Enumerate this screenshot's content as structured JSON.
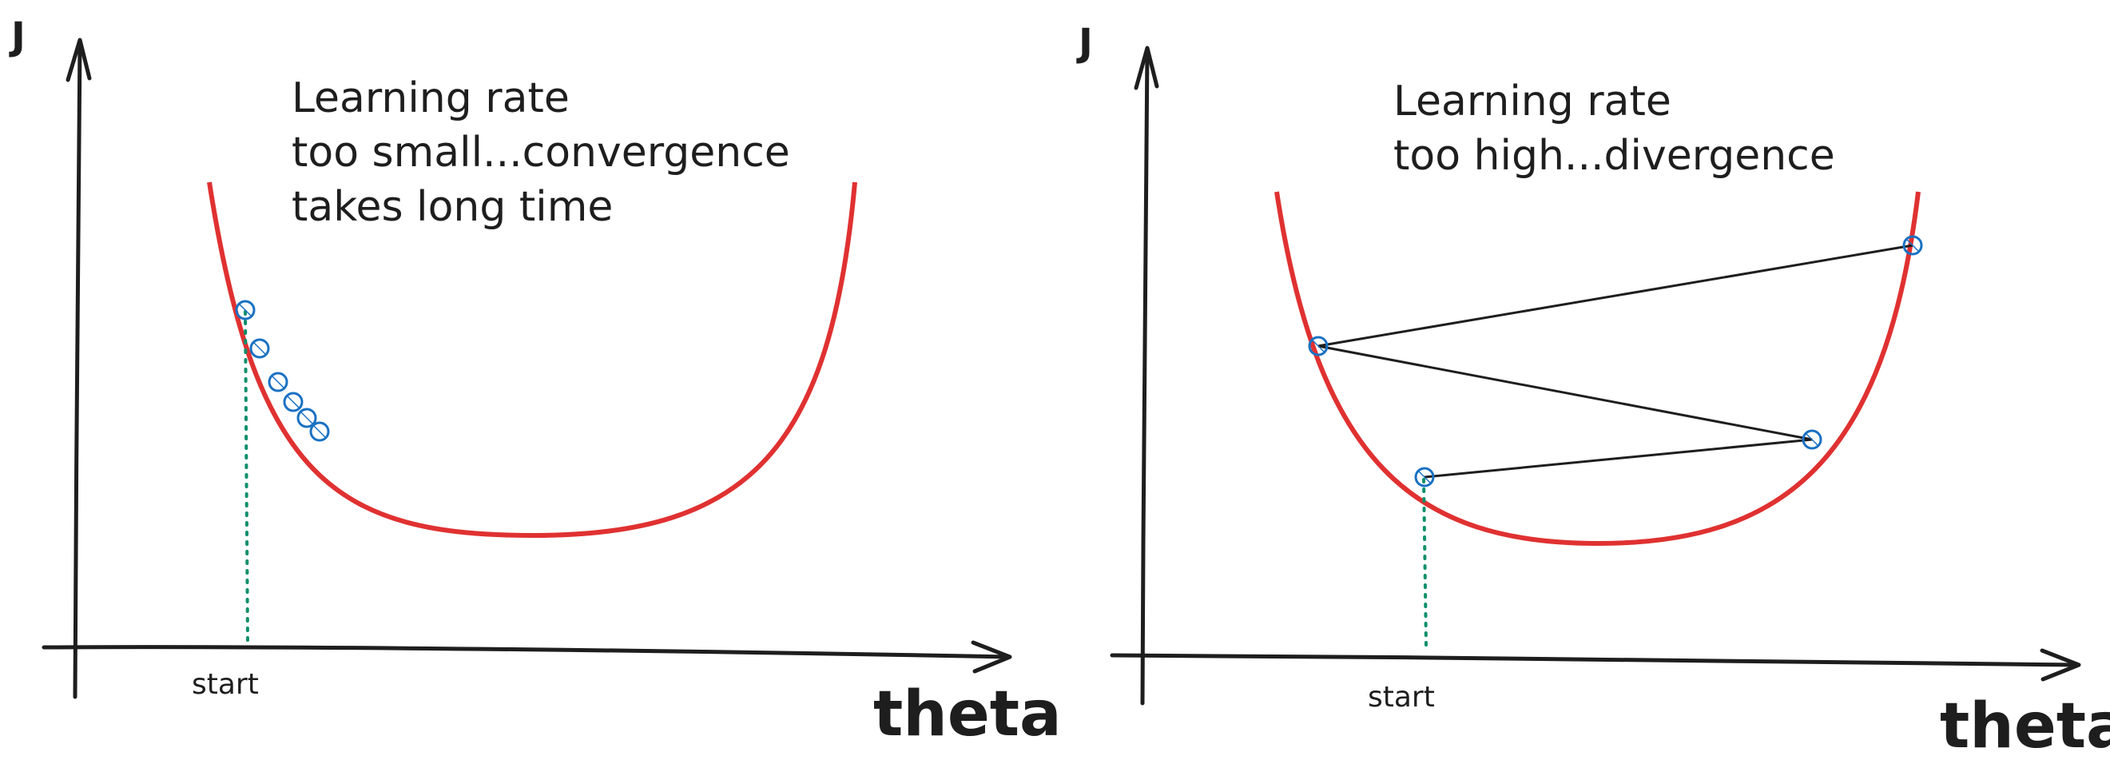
{
  "panels": [
    {
      "id": "left",
      "y_axis_label": "J",
      "x_axis_label": "theta",
      "start_label": "start",
      "note_lines": [
        "Learning rate",
        "too small...convergence",
        "takes long time"
      ],
      "curve_color": "#e03131",
      "marker_color": "#1971c2",
      "guide_color": "#0c8f6a",
      "markers_count": 6
    },
    {
      "id": "right",
      "y_axis_label": "J",
      "x_axis_label": "theta",
      "start_label": "start",
      "note_lines": [
        "Learning rate",
        "too high...divergence"
      ],
      "curve_color": "#e03131",
      "marker_color": "#1971c2",
      "guide_color": "#0c8f6a",
      "markers_count": 4
    }
  ]
}
